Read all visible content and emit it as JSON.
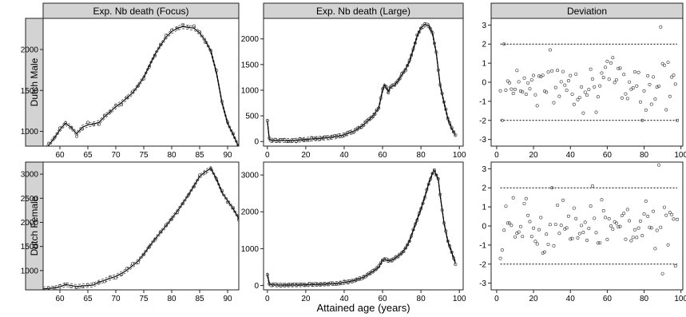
{
  "figure": {
    "xlabel": "Attained age (years)",
    "column_titles": [
      "Exp. Nb death (Focus)",
      "Exp. Nb death (Large)",
      "Deviation"
    ],
    "row_titles": [
      "Dutch Male",
      "Dutch Female"
    ]
  },
  "chart_data": [
    {
      "type": "line",
      "row": "Dutch Male",
      "column": "Exp. Nb death (Focus)",
      "xlim": [
        57,
        92
      ],
      "ylim": [
        820,
        2380
      ],
      "xticks": [
        60,
        65,
        70,
        75,
        80,
        85,
        90
      ],
      "yticks": [
        1000,
        1500,
        2000
      ],
      "key_x": [
        57,
        58,
        59,
        60,
        61,
        62,
        63,
        64,
        65,
        66,
        67,
        68,
        69,
        70,
        71,
        72,
        73,
        74,
        75,
        76,
        77,
        78,
        79,
        80,
        81,
        82,
        83,
        84,
        85,
        86,
        87,
        88,
        89,
        90,
        91,
        92
      ],
      "key_y": [
        750,
        830,
        920,
        1020,
        1100,
        1050,
        970,
        1050,
        1080,
        1090,
        1110,
        1180,
        1240,
        1300,
        1350,
        1410,
        1470,
        1560,
        1660,
        1800,
        1940,
        2050,
        2150,
        2220,
        2260,
        2280,
        2270,
        2260,
        2200,
        2110,
        1980,
        1720,
        1350,
        1100,
        960,
        810
      ],
      "band": 25,
      "spread": 30
    },
    {
      "type": "line",
      "row": "Dutch Male",
      "column": "Exp. Nb death (Large)",
      "xlim": [
        -2,
        102
      ],
      "ylim": [
        -90,
        2400
      ],
      "xticks": [
        0,
        20,
        40,
        60,
        80,
        100
      ],
      "yticks": [
        0,
        500,
        1000,
        1500,
        2000
      ],
      "key_x": [
        0,
        1,
        2,
        5,
        10,
        15,
        20,
        25,
        30,
        35,
        40,
        45,
        50,
        55,
        58,
        60,
        61,
        62,
        63,
        64,
        65,
        66,
        68,
        70,
        72,
        74,
        76,
        78,
        80,
        82,
        84,
        86,
        88,
        90,
        92,
        94,
        96,
        98
      ],
      "key_y": [
        400,
        50,
        25,
        18,
        18,
        22,
        40,
        55,
        70,
        90,
        130,
        200,
        320,
        500,
        650,
        1000,
        1100,
        1050,
        970,
        1050,
        1080,
        1090,
        1180,
        1300,
        1410,
        1560,
        1800,
        2050,
        2220,
        2280,
        2260,
        2110,
        1720,
        1100,
        760,
        450,
        250,
        120
      ],
      "band": 40,
      "spread": 25
    },
    {
      "type": "scatter",
      "row": "Dutch Male",
      "column": "Deviation",
      "xlim": [
        -3,
        101
      ],
      "ylim": [
        -3.35,
        3.35
      ],
      "xticks": [
        0,
        20,
        40,
        60,
        80,
        100
      ],
      "yticks": [
        -3,
        -2,
        -1,
        0,
        1,
        2,
        3
      ],
      "bounds": [
        -2,
        2
      ],
      "x_range": [
        2,
        98
      ],
      "outliers": [
        [
          4,
          2.0
        ],
        [
          89,
          2.9
        ],
        [
          3,
          -2.0
        ],
        [
          79,
          -2.0
        ],
        [
          98,
          -2.0
        ]
      ],
      "seed": 7
    },
    {
      "type": "line",
      "row": "Dutch Female",
      "column": "Exp. Nb death (Focus)",
      "xlim": [
        57,
        92
      ],
      "ylim": [
        600,
        3250
      ],
      "xticks": [
        60,
        65,
        70,
        75,
        80,
        85,
        90
      ],
      "yticks": [
        1000,
        1500,
        2000,
        2500,
        3000
      ],
      "key_x": [
        57,
        58,
        59,
        60,
        61,
        62,
        63,
        64,
        65,
        66,
        67,
        68,
        69,
        70,
        71,
        72,
        73,
        74,
        75,
        76,
        77,
        78,
        79,
        80,
        81,
        82,
        83,
        84,
        85,
        86,
        87,
        88,
        89,
        90,
        91,
        92
      ],
      "key_y": [
        620,
        630,
        640,
        660,
        710,
        690,
        670,
        680,
        690,
        700,
        760,
        800,
        840,
        880,
        940,
        1010,
        1100,
        1200,
        1340,
        1500,
        1650,
        1790,
        1930,
        2080,
        2230,
        2400,
        2570,
        2760,
        2950,
        3050,
        3120,
        2900,
        2620,
        2450,
        2280,
        2080
      ],
      "band": 40,
      "spread": 40
    },
    {
      "type": "line",
      "row": "Dutch Female",
      "column": "Exp. Nb death (Large)",
      "xlim": [
        -2,
        102
      ],
      "ylim": [
        -120,
        3350
      ],
      "xticks": [
        0,
        20,
        40,
        60,
        80,
        100
      ],
      "yticks": [
        0,
        1000,
        2000,
        3000
      ],
      "key_x": [
        0,
        1,
        2,
        5,
        10,
        15,
        20,
        25,
        30,
        35,
        40,
        45,
        50,
        55,
        58,
        60,
        61,
        62,
        63,
        65,
        68,
        70,
        72,
        74,
        76,
        78,
        80,
        82,
        84,
        86,
        87,
        88,
        89,
        90,
        92,
        94,
        96,
        98
      ],
      "key_y": [
        300,
        40,
        20,
        12,
        10,
        12,
        18,
        25,
        35,
        50,
        80,
        130,
        220,
        380,
        500,
        680,
        710,
        690,
        670,
        690,
        800,
        880,
        1010,
        1200,
        1500,
        1790,
        2080,
        2400,
        2760,
        3050,
        3120,
        3000,
        2900,
        2450,
        1700,
        1200,
        900,
        600
      ],
      "band": 50,
      "spread": 30
    },
    {
      "type": "scatter",
      "row": "Dutch Female",
      "column": "Deviation",
      "xlim": [
        -3,
        101
      ],
      "ylim": [
        -3.35,
        3.35
      ],
      "xticks": [
        0,
        20,
        40,
        60,
        80,
        100
      ],
      "yticks": [
        -3,
        -2,
        -1,
        0,
        1,
        2,
        3
      ],
      "bounds": [
        -2,
        2
      ],
      "x_range": [
        2,
        98
      ],
      "outliers": [
        [
          88,
          3.2
        ],
        [
          52,
          2.1
        ],
        [
          30,
          2.0
        ],
        [
          2,
          -1.7
        ],
        [
          90,
          -2.5
        ],
        [
          97,
          -2.1
        ]
      ],
      "seed": 21
    }
  ]
}
